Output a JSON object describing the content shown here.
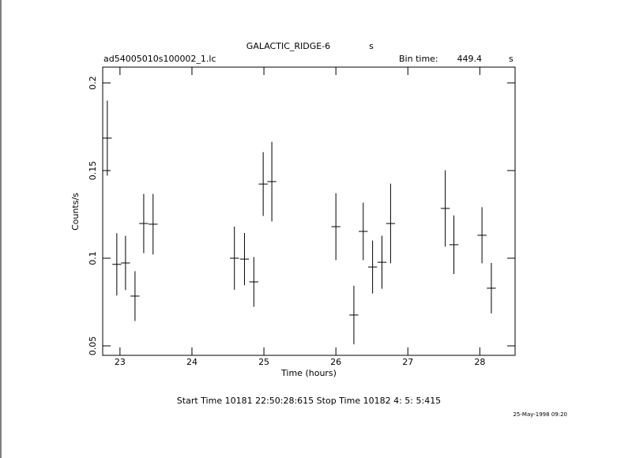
{
  "chart_data": {
    "type": "errorbar",
    "title": "GALACTIC_RIDGE-6",
    "title_suffix": "s",
    "file_name": "ad54005010s100002_1.lc",
    "bin_time_label": "Bin time:",
    "bin_time": 449.4,
    "bin_time_unit": "s",
    "x_label": "Time (hours)",
    "y_label": "Counts/s",
    "footer": "Start Time 10181 22:50:28:615    Stop Time 10182  4: 5: 5:415",
    "date": "25-May-1998 09:20",
    "x": [
      22.824,
      22.956,
      23.077,
      23.209,
      23.33,
      23.46,
      24.59,
      24.73,
      24.86,
      24.99,
      25.11,
      26.0,
      26.25,
      26.38,
      26.51,
      26.64,
      26.76,
      27.52,
      27.64,
      28.03,
      28.16
    ],
    "values": [
      0.1685,
      0.0965,
      0.0973,
      0.0784,
      0.1198,
      0.1194,
      0.1,
      0.0995,
      0.0865,
      0.1423,
      0.1437,
      0.118,
      0.0676,
      0.1153,
      0.095,
      0.0977,
      0.1198,
      0.1284,
      0.1077,
      0.1131,
      0.0829
    ],
    "errors": [
      0.0214,
      0.0178,
      0.0155,
      0.0142,
      0.0169,
      0.0173,
      0.018,
      0.0149,
      0.0142,
      0.0182,
      0.0227,
      0.0191,
      0.0167,
      0.0164,
      0.0151,
      0.0151,
      0.0227,
      0.0218,
      0.0167,
      0.016,
      0.0144
    ],
    "x_error": 0.0625,
    "color": "#000000",
    "xlim": [
      22.76,
      28.49
    ],
    "xticks": [
      23,
      24,
      25,
      26,
      27,
      28
    ],
    "ylim": [
      0.0446,
      0.209
    ],
    "yticks": [
      0.05,
      0.1,
      0.15,
      0.2
    ]
  }
}
